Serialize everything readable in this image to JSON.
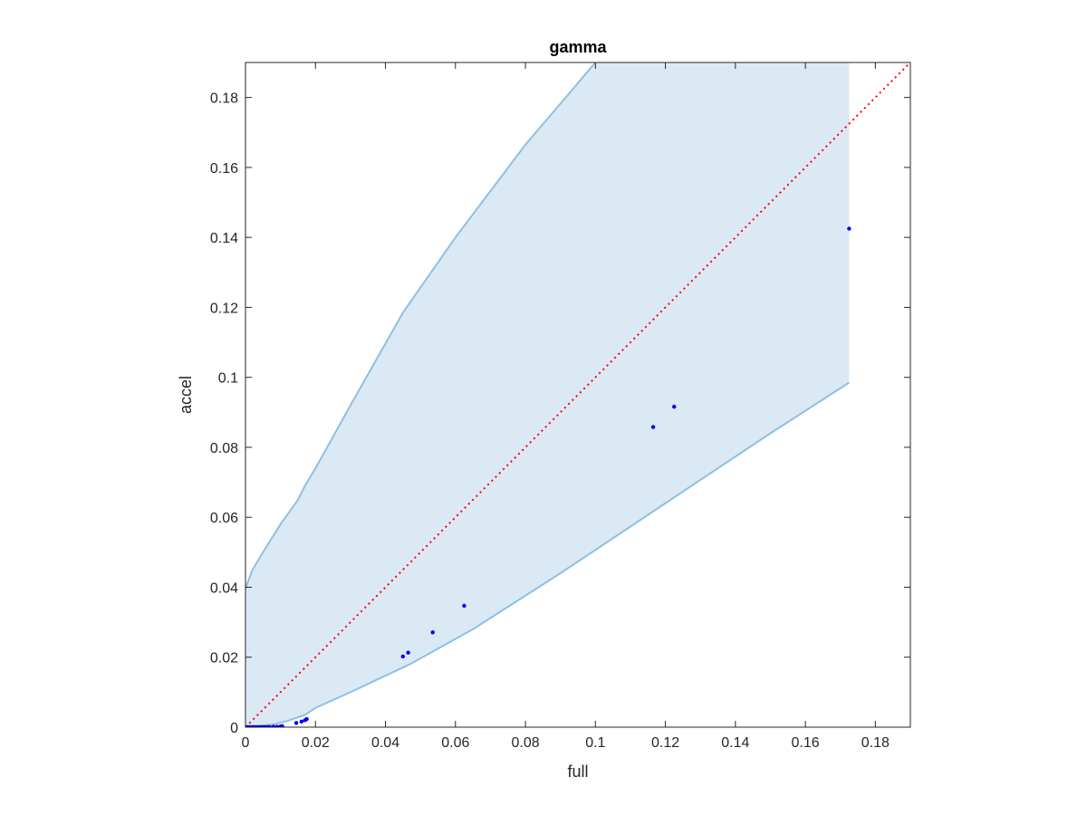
{
  "chart_data": {
    "type": "scatter",
    "title": "gamma",
    "xlabel": "full",
    "ylabel": "accel",
    "xlim": [
      0,
      0.19
    ],
    "ylim": [
      0,
      0.19
    ],
    "xticks": [
      0,
      0.02,
      0.04,
      0.06,
      0.08,
      0.1,
      0.12,
      0.14,
      0.16,
      0.18
    ],
    "yticks": [
      0,
      0.02,
      0.04,
      0.06,
      0.08,
      0.1,
      0.12,
      0.14,
      0.16,
      0.18
    ],
    "xtick_labels": [
      "0",
      "0.02",
      "0.04",
      "0.06",
      "0.08",
      "0.1",
      "0.12",
      "0.14",
      "0.16",
      "0.18"
    ],
    "ytick_labels": [
      "0",
      "0.02",
      "0.04",
      "0.06",
      "0.08",
      "0.1",
      "0.12",
      "0.14",
      "0.16",
      "0.18"
    ],
    "grid": false,
    "box": true,
    "colors": {
      "points": "#0000ff",
      "band_fill": "#dbe9f5",
      "band_edge": "#8ec0e2",
      "reference_line": "#ff0000",
      "axes": "#262626"
    },
    "points": {
      "x": [
        0.0002,
        0.0005,
        0.001,
        0.0015,
        0.002,
        0.0025,
        0.003,
        0.0035,
        0.004,
        0.0045,
        0.005,
        0.0055,
        0.006,
        0.0065,
        0.007,
        0.008,
        0.009,
        0.01,
        0.0105,
        0.0145,
        0.016,
        0.017,
        0.0175,
        0.045,
        0.0465,
        0.0535,
        0.0625,
        0.1165,
        0.1225,
        0.1725
      ],
      "y": [
        0,
        0,
        0,
        0,
        0,
        0,
        0,
        0,
        0,
        0,
        0,
        0,
        0,
        0,
        0,
        0.0001,
        0.0001,
        0.0002,
        0.0003,
        0.0012,
        0.0016,
        0.002,
        0.0023,
        0.0202,
        0.0213,
        0.0271,
        0.0347,
        0.0858,
        0.0916,
        0.1425
      ]
    },
    "band_upper": {
      "x": [
        0,
        0.0005,
        0.002,
        0.005,
        0.01,
        0.015,
        0.017,
        0.02,
        0.03,
        0.045,
        0.06,
        0.08,
        0.1
      ],
      "y": [
        0.0395,
        0.041,
        0.045,
        0.05,
        0.058,
        0.065,
        0.069,
        0.074,
        0.092,
        0.1185,
        0.14,
        0.1665,
        0.19
      ]
    },
    "band_right_x": 0.1725,
    "band_lower": {
      "x": [
        0,
        0.003,
        0.008,
        0.012,
        0.017,
        0.02,
        0.03,
        0.047,
        0.065,
        0.09,
        0.12,
        0.15,
        0.1725
      ],
      "y": [
        0,
        0.0002,
        0.0008,
        0.0018,
        0.0035,
        0.0055,
        0.01,
        0.018,
        0.028,
        0.044,
        0.064,
        0.084,
        0.0985
      ]
    },
    "reference_line": {
      "x": [
        0,
        0.19
      ],
      "y": [
        0,
        0.19
      ],
      "style": "dotted"
    }
  }
}
